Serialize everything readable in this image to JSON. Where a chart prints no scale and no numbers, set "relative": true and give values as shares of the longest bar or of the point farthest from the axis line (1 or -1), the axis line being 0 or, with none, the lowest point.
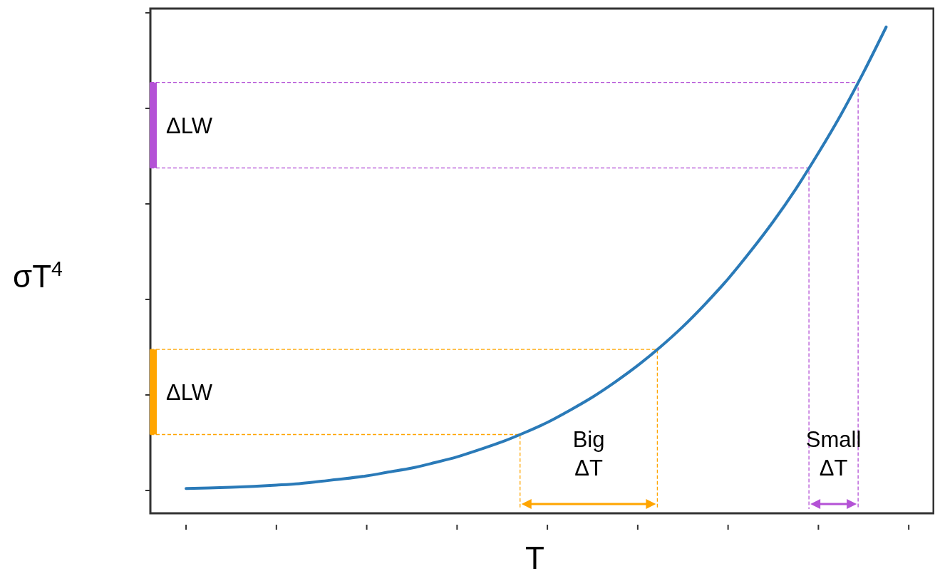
{
  "chart_data": {
    "type": "line",
    "relative": true,
    "xlabel": "T",
    "ylabel": "σT$^{4}$",
    "categories": [
      null,
      null,
      null,
      null,
      null,
      null,
      null,
      null,
      null,
      null,
      null,
      null,
      null,
      null,
      null,
      null,
      null,
      null,
      null,
      null,
      null,
      null,
      null,
      null,
      null,
      null,
      null,
      null,
      null,
      null,
      null,
      null
    ],
    "series": [
      {
        "color": "#2a7ab8",
        "values": [
          0.051,
          0.052,
          0.0535,
          0.0555,
          0.058,
          0.061,
          0.066,
          0.071,
          0.077,
          0.085,
          0.093,
          0.104,
          0.116,
          0.131,
          0.147,
          0.166,
          0.187,
          0.212,
          0.239,
          0.27,
          0.304,
          0.342,
          0.384,
          0.431,
          0.482,
          0.539,
          0.6,
          0.667,
          0.741,
          0.82,
          0.907,
          1
        ]
      }
    ],
    "ref_lines": [
      {
        "axis": "y",
        "value": 0.162,
        "color": "#ffa500",
        "line_style": "dashed"
      },
      {
        "axis": "y",
        "value": 0.337,
        "label": "ΔLW",
        "color": "#ffa500",
        "line_style": "dashed"
      },
      {
        "axis": "y",
        "value": 0.71,
        "color": "#b452d6",
        "line_style": "dashed"
      },
      {
        "axis": "y",
        "value": 0.886,
        "label": "ΔLW",
        "color": "#b452d6",
        "line_style": "dashed"
      }
    ],
    "annotations": [
      "Big ΔT",
      "Small ΔT"
    ]
  }
}
